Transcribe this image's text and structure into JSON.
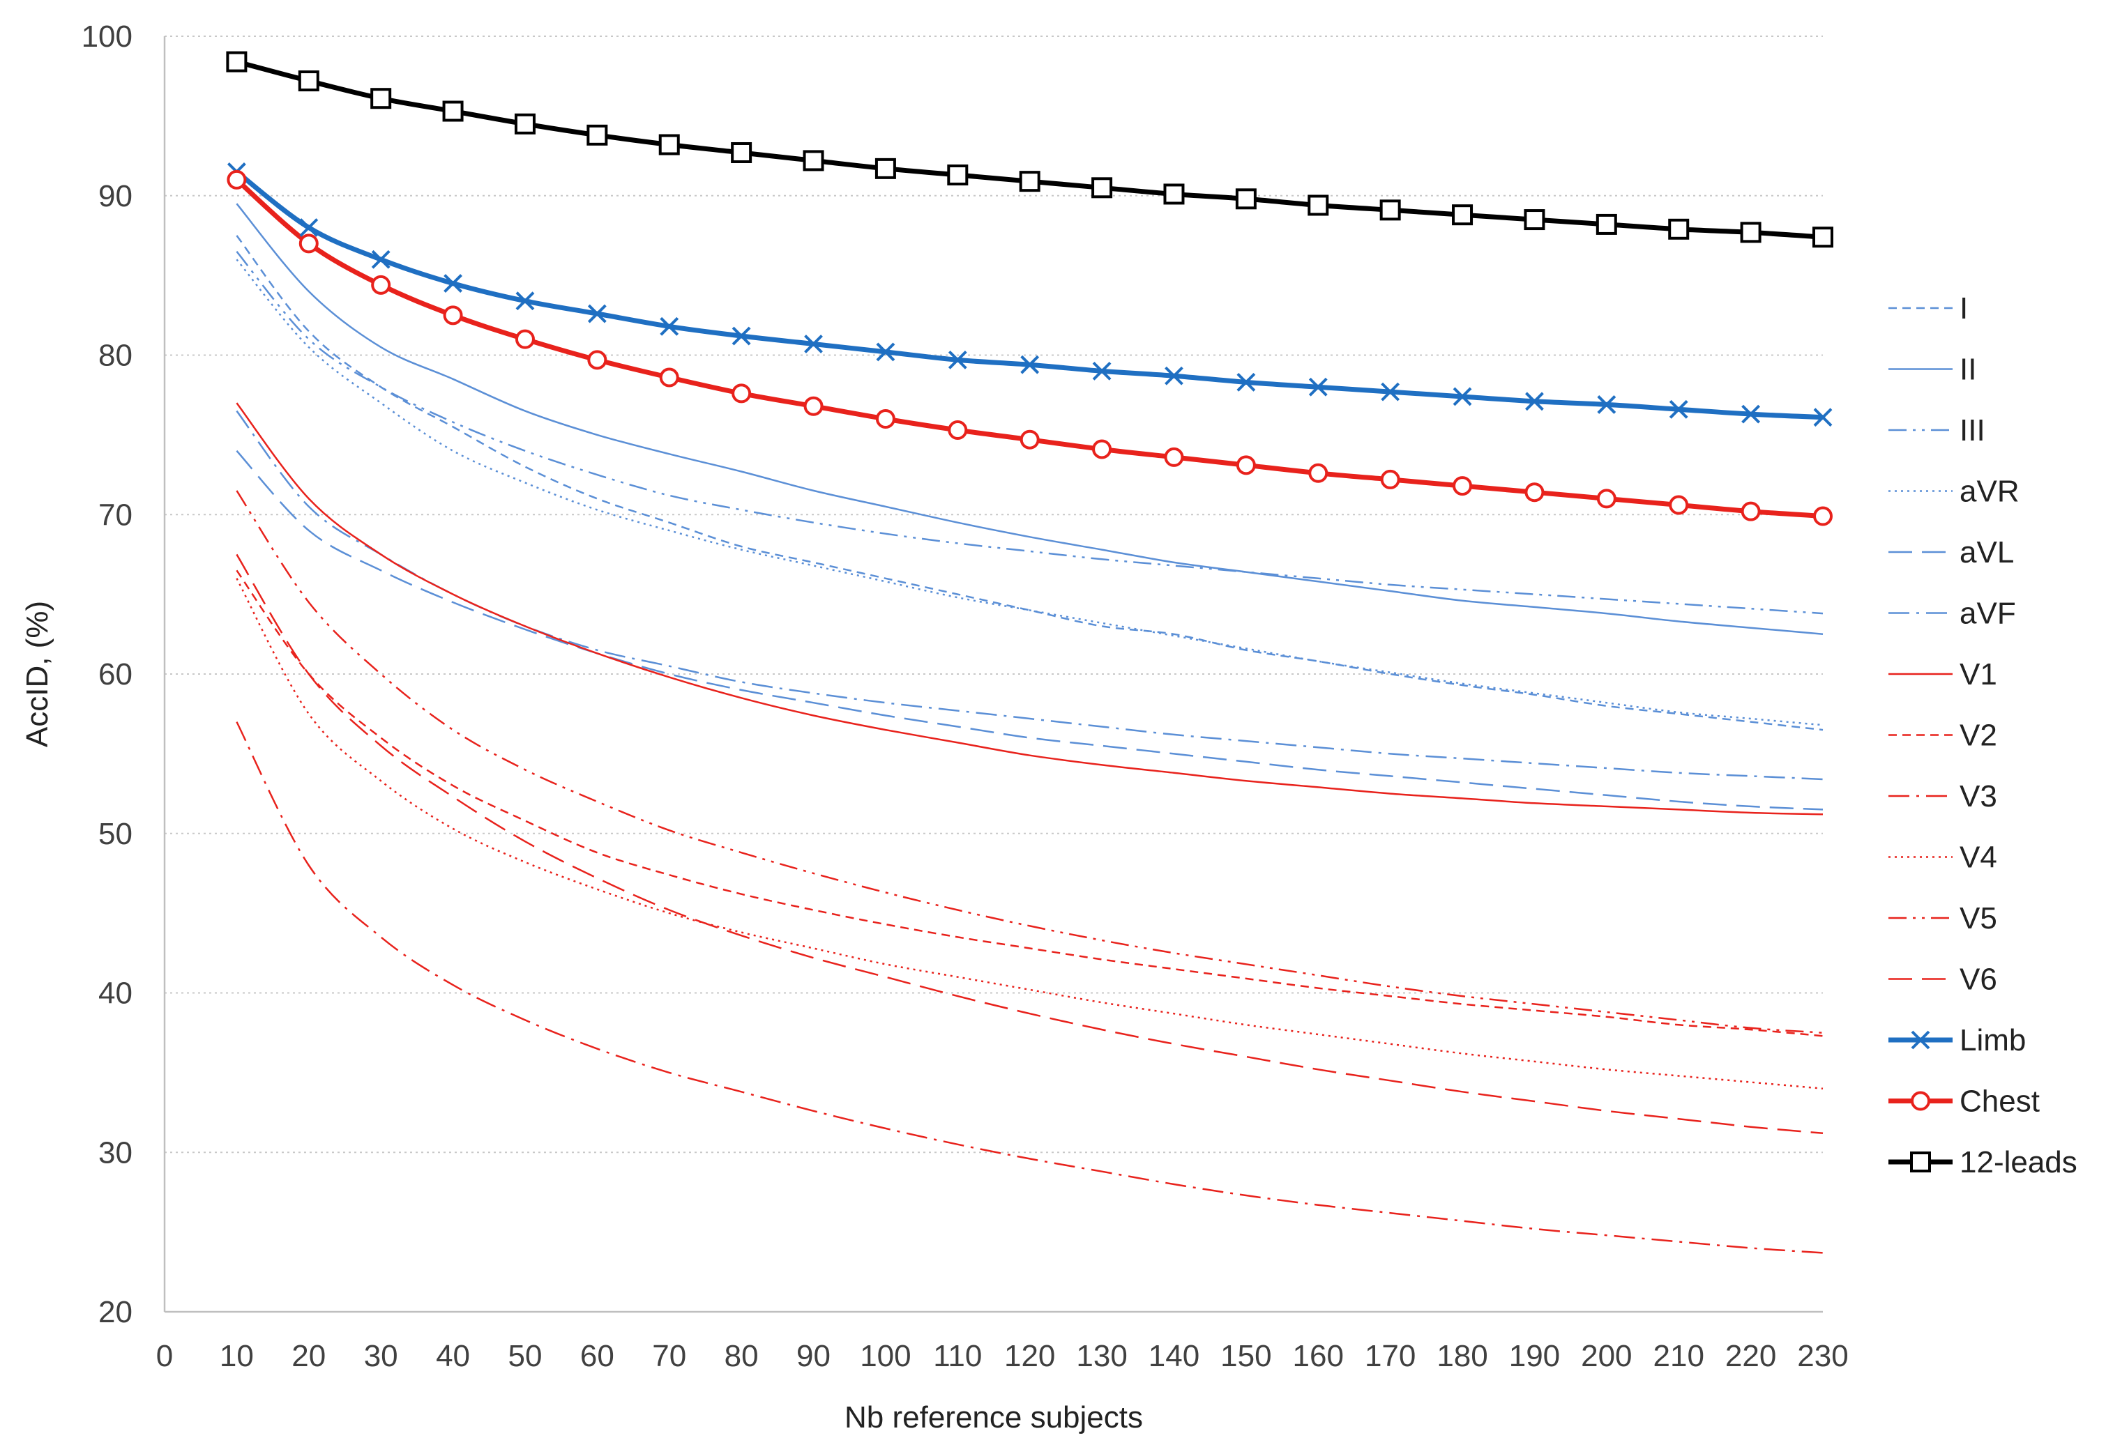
{
  "chart_data": {
    "type": "line",
    "title": "",
    "xlabel": "Nb reference subjects",
    "ylabel": "AccID, (%)",
    "xlim": [
      0,
      230
    ],
    "ylim": [
      20,
      100
    ],
    "x_ticks": [
      "0",
      "10",
      "20",
      "30",
      "40",
      "50",
      "60",
      "70",
      "80",
      "90",
      "100",
      "110",
      "120",
      "130",
      "140",
      "150",
      "160",
      "170",
      "180",
      "190",
      "200",
      "210",
      "220",
      "230"
    ],
    "y_ticks": [
      "20",
      "30",
      "40",
      "50",
      "60",
      "70",
      "80",
      "90",
      "100"
    ],
    "grid": true,
    "legend_position": "right",
    "x": [
      10,
      20,
      30,
      40,
      50,
      60,
      70,
      80,
      90,
      100,
      110,
      120,
      130,
      140,
      150,
      160,
      170,
      180,
      190,
      200,
      210,
      220,
      230
    ],
    "series": [
      {
        "name": "I",
        "color": "#5b8fd6",
        "style": "dash-short",
        "marker": "none",
        "width": "thin",
        "values": [
          87.5,
          81.5,
          78.0,
          75.5,
          73.0,
          71.0,
          69.5,
          68.0,
          67.0,
          66.0,
          65.0,
          64.0,
          63.0,
          62.5,
          61.5,
          60.8,
          60.0,
          59.3,
          58.7,
          58.0,
          57.5,
          57.0,
          56.5
        ]
      },
      {
        "name": "II",
        "color": "#5b8fd6",
        "style": "solid",
        "marker": "none",
        "width": "thin",
        "values": [
          89.5,
          84.0,
          80.5,
          78.5,
          76.5,
          75.0,
          73.8,
          72.7,
          71.5,
          70.5,
          69.5,
          68.6,
          67.8,
          67.0,
          66.4,
          65.8,
          65.2,
          64.6,
          64.2,
          63.8,
          63.3,
          62.9,
          62.5
        ]
      },
      {
        "name": "III",
        "color": "#5b8fd6",
        "style": "dash-dot-dot",
        "marker": "none",
        "width": "thin",
        "values": [
          86.5,
          81.0,
          78.0,
          75.8,
          74.0,
          72.5,
          71.2,
          70.3,
          69.5,
          68.8,
          68.2,
          67.7,
          67.2,
          66.8,
          66.4,
          66.0,
          65.6,
          65.3,
          65.0,
          64.7,
          64.4,
          64.1,
          63.8
        ]
      },
      {
        "name": "aVR",
        "color": "#5b8fd6",
        "style": "dotted",
        "marker": "none",
        "width": "thin",
        "values": [
          86.0,
          80.5,
          77.0,
          74.0,
          72.0,
          70.3,
          69.0,
          67.8,
          66.8,
          65.8,
          64.8,
          64.0,
          63.2,
          62.4,
          61.6,
          60.8,
          60.1,
          59.4,
          58.8,
          58.2,
          57.6,
          57.2,
          56.8
        ]
      },
      {
        "name": "aVL",
        "color": "#5b8fd6",
        "style": "dash-long",
        "marker": "none",
        "width": "thin",
        "values": [
          74.0,
          69.0,
          66.5,
          64.5,
          62.8,
          61.3,
          60.0,
          59.0,
          58.2,
          57.4,
          56.7,
          56.0,
          55.5,
          55.0,
          54.5,
          54.0,
          53.6,
          53.2,
          52.8,
          52.4,
          52.0,
          51.7,
          51.5
        ]
      },
      {
        "name": "aVF",
        "color": "#5b8fd6",
        "style": "dash-dot",
        "marker": "none",
        "width": "thin",
        "values": [
          76.5,
          70.5,
          67.5,
          65.0,
          63.0,
          61.5,
          60.5,
          59.5,
          58.8,
          58.2,
          57.7,
          57.2,
          56.7,
          56.2,
          55.8,
          55.4,
          55.0,
          54.7,
          54.4,
          54.1,
          53.8,
          53.6,
          53.4
        ]
      },
      {
        "name": "V1",
        "color": "#e8221c",
        "style": "solid",
        "marker": "none",
        "width": "thin",
        "values": [
          77.0,
          71.0,
          67.5,
          65.0,
          63.0,
          61.3,
          59.8,
          58.5,
          57.4,
          56.5,
          55.7,
          54.9,
          54.3,
          53.8,
          53.3,
          52.9,
          52.5,
          52.2,
          51.9,
          51.7,
          51.5,
          51.3,
          51.2
        ]
      },
      {
        "name": "V2",
        "color": "#e8221c",
        "style": "dash-short",
        "marker": "none",
        "width": "thin",
        "values": [
          66.5,
          60.0,
          56.0,
          53.0,
          50.8,
          48.8,
          47.4,
          46.2,
          45.2,
          44.3,
          43.5,
          42.8,
          42.1,
          41.5,
          40.9,
          40.3,
          39.8,
          39.3,
          38.9,
          38.5,
          38.0,
          37.7,
          37.3
        ]
      },
      {
        "name": "V3",
        "color": "#e8221c",
        "style": "dash-dot",
        "marker": "none",
        "width": "thin",
        "values": [
          57.0,
          48.0,
          43.5,
          40.5,
          38.3,
          36.5,
          35.0,
          33.8,
          32.6,
          31.5,
          30.5,
          29.6,
          28.8,
          28.0,
          27.3,
          26.7,
          26.2,
          25.7,
          25.2,
          24.8,
          24.4,
          24.0,
          23.7
        ]
      },
      {
        "name": "V4",
        "color": "#e8221c",
        "style": "dotted",
        "marker": "none",
        "width": "thin",
        "values": [
          66.0,
          57.5,
          53.3,
          50.3,
          48.2,
          46.5,
          45.0,
          43.8,
          42.8,
          41.8,
          41.0,
          40.2,
          39.4,
          38.7,
          38.0,
          37.4,
          36.8,
          36.2,
          35.7,
          35.2,
          34.8,
          34.4,
          34.0
        ]
      },
      {
        "name": "V5",
        "color": "#e8221c",
        "style": "dash-dot-dot",
        "marker": "none",
        "width": "thin",
        "values": [
          71.5,
          64.5,
          60.0,
          56.5,
          54.0,
          52.0,
          50.2,
          48.8,
          47.5,
          46.3,
          45.2,
          44.2,
          43.3,
          42.5,
          41.8,
          41.1,
          40.4,
          39.8,
          39.3,
          38.8,
          38.3,
          37.8,
          37.5
        ]
      },
      {
        "name": "V6",
        "color": "#e8221c",
        "style": "dash-long",
        "marker": "none",
        "width": "thin",
        "values": [
          67.5,
          60.0,
          55.5,
          52.3,
          49.5,
          47.2,
          45.2,
          43.6,
          42.2,
          41.0,
          39.8,
          38.7,
          37.7,
          36.8,
          36.0,
          35.2,
          34.5,
          33.8,
          33.2,
          32.6,
          32.1,
          31.6,
          31.2
        ]
      },
      {
        "name": "Limb",
        "color": "#1f6fc2",
        "style": "solid",
        "marker": "x",
        "width": "thick",
        "values": [
          91.5,
          88.0,
          86.0,
          84.5,
          83.4,
          82.6,
          81.8,
          81.2,
          80.7,
          80.2,
          79.7,
          79.4,
          79.0,
          78.7,
          78.3,
          78.0,
          77.7,
          77.4,
          77.1,
          76.9,
          76.6,
          76.3,
          76.1
        ]
      },
      {
        "name": "Chest",
        "color": "#e8221c",
        "style": "solid",
        "marker": "circle",
        "width": "thick",
        "values": [
          91.0,
          87.0,
          84.4,
          82.5,
          81.0,
          79.7,
          78.6,
          77.6,
          76.8,
          76.0,
          75.3,
          74.7,
          74.1,
          73.6,
          73.1,
          72.6,
          72.2,
          71.8,
          71.4,
          71.0,
          70.6,
          70.2,
          69.9
        ]
      },
      {
        "name": "12-leads",
        "color": "#000000",
        "style": "solid",
        "marker": "square",
        "width": "thick",
        "values": [
          98.4,
          97.2,
          96.1,
          95.3,
          94.5,
          93.8,
          93.2,
          92.7,
          92.2,
          91.7,
          91.3,
          90.9,
          90.5,
          90.1,
          89.8,
          89.4,
          89.1,
          88.8,
          88.5,
          88.2,
          87.9,
          87.7,
          87.4
        ]
      }
    ]
  }
}
